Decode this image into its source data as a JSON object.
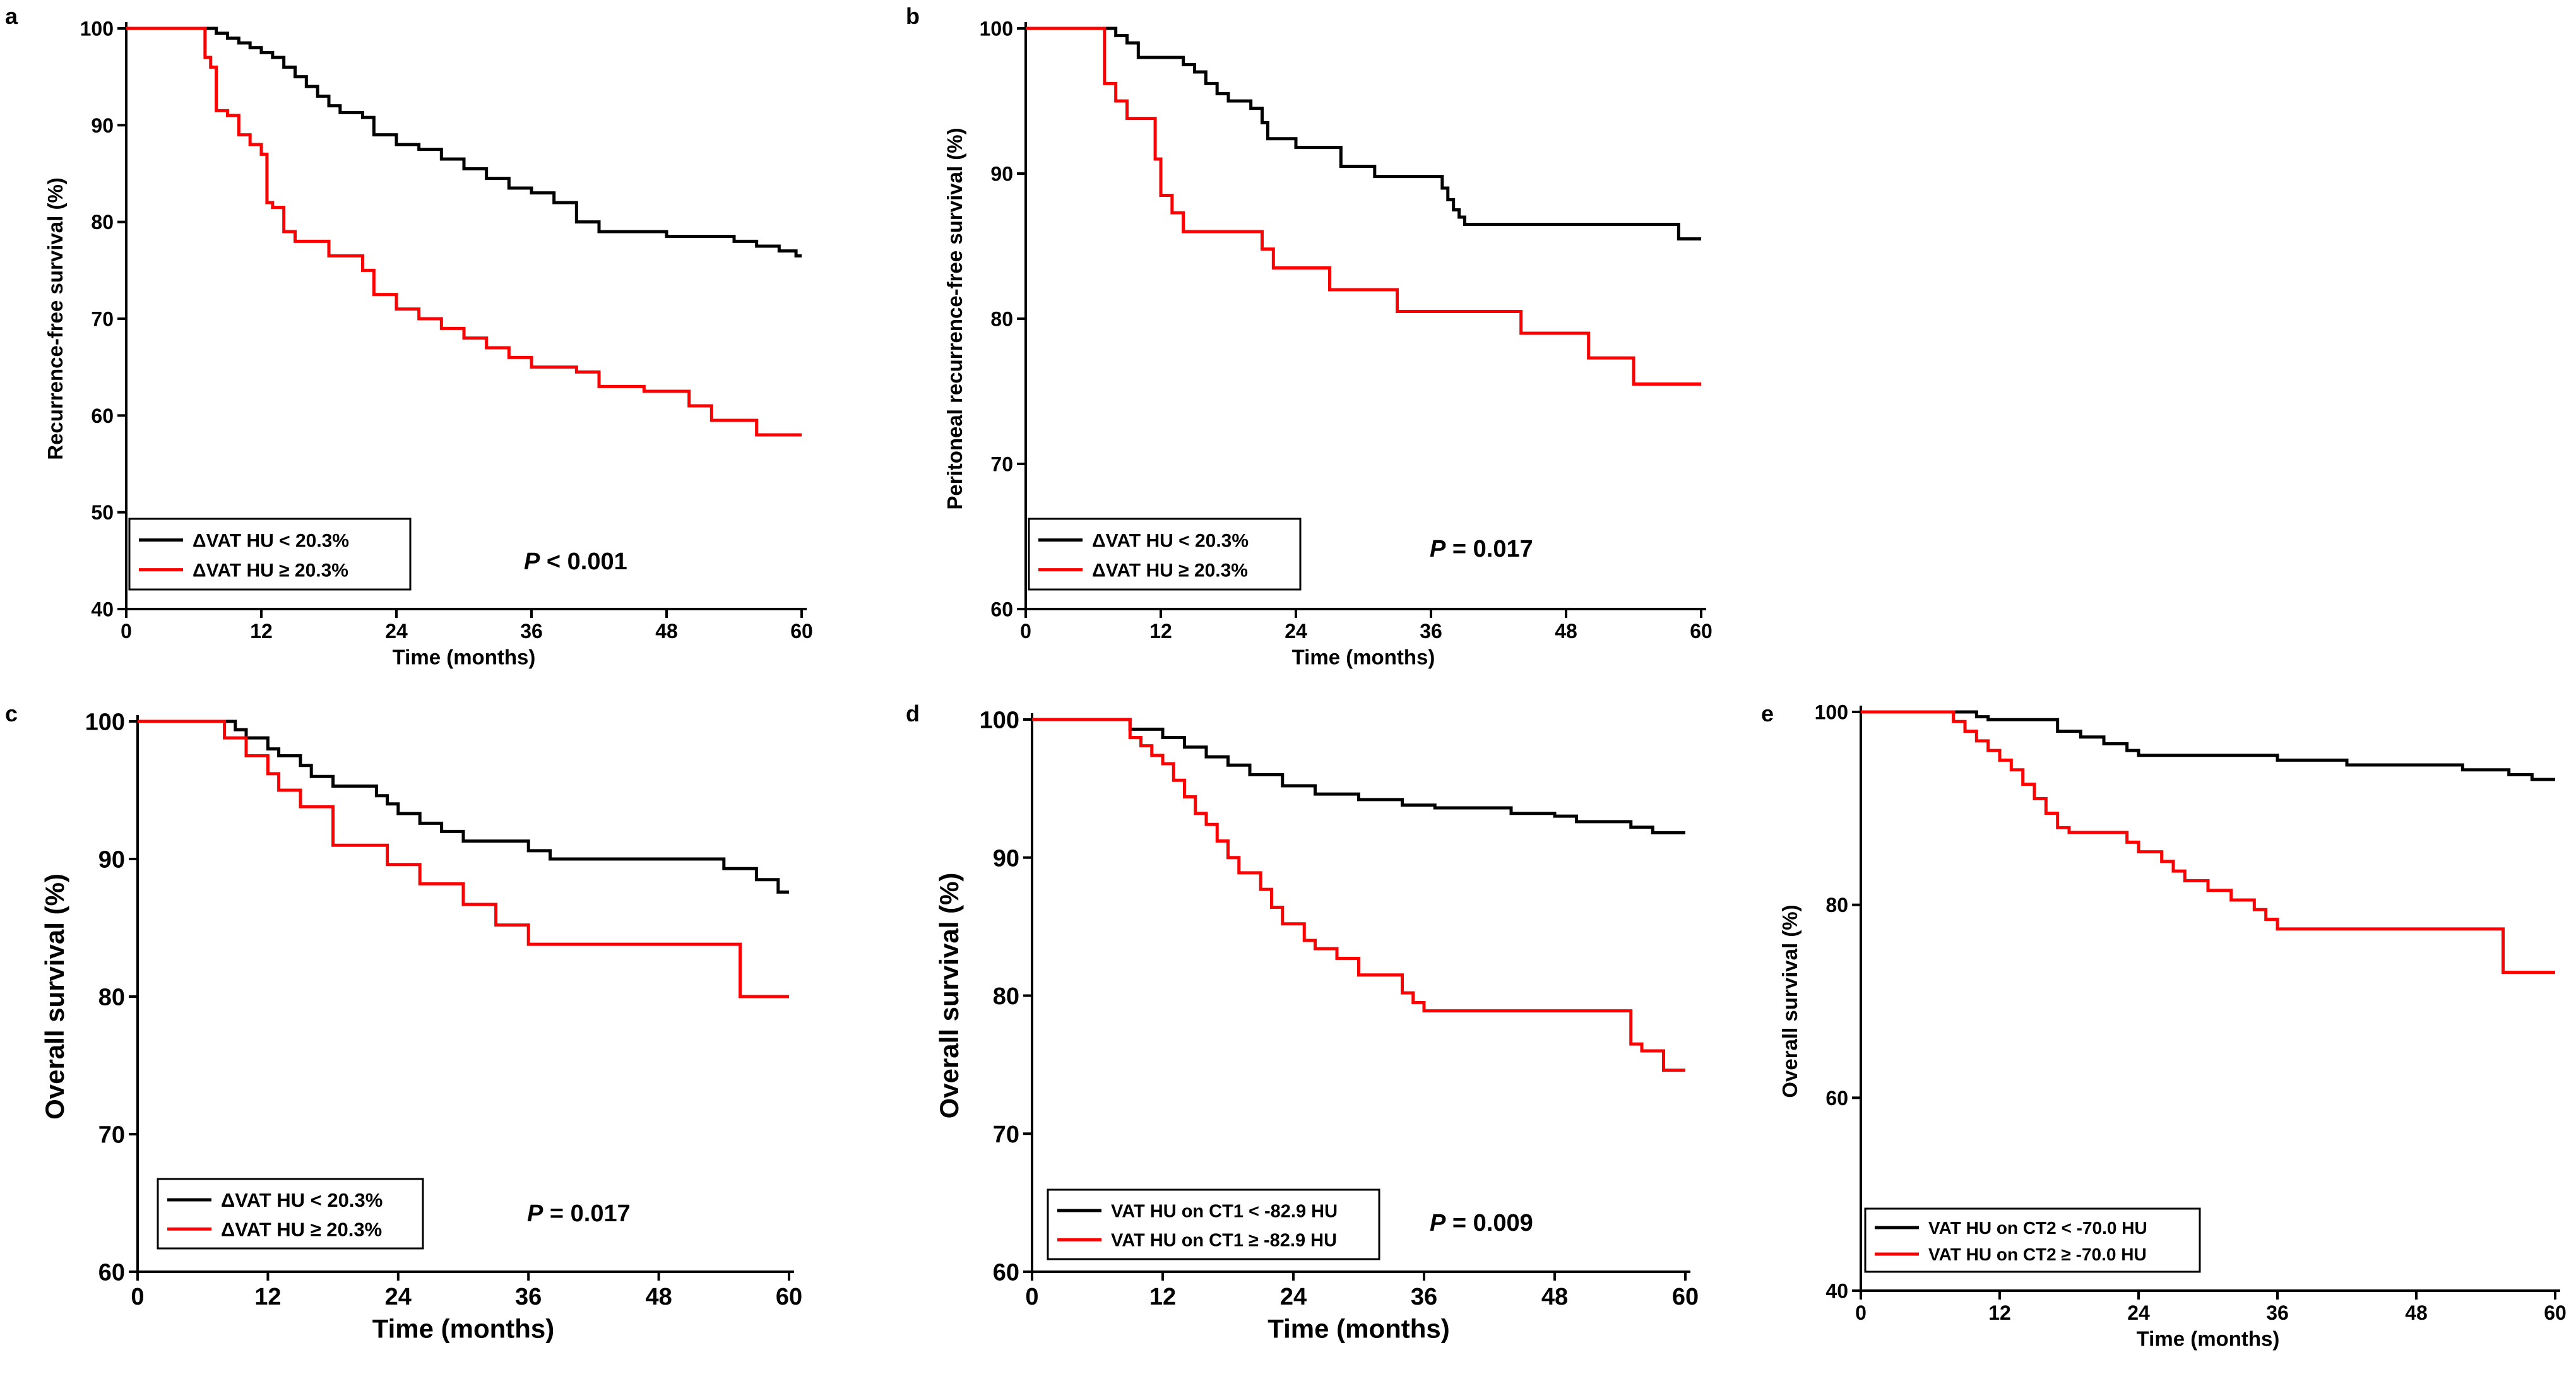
{
  "chart_data": [
    {
      "panel": "a",
      "type": "line",
      "step": true,
      "xlabel": "Time (months)",
      "ylabel": "Recurrence-free survival (%)",
      "xlim": [
        0,
        60
      ],
      "ylim": [
        40,
        100
      ],
      "xticks": [
        0,
        12,
        24,
        36,
        48,
        60
      ],
      "yticks": [
        40,
        50,
        60,
        70,
        80,
        90,
        100
      ],
      "legend_position": "bottom-left",
      "annotation": "P < 0.001",
      "series": [
        {
          "name": "ΔVAT HU < 20.3%",
          "color": "#000000",
          "x": [
            0,
            7,
            8,
            9,
            10,
            11,
            12,
            13,
            14,
            15,
            16,
            17,
            18,
            19,
            21,
            22,
            24,
            26,
            28,
            30,
            32,
            34,
            36,
            38,
            40,
            42,
            48,
            54,
            56,
            58,
            59.5,
            60
          ],
          "y": [
            100,
            100,
            99.5,
            99,
            98.5,
            98,
            97.5,
            97,
            96,
            95,
            94,
            93,
            92,
            91.3,
            90.8,
            89,
            88,
            87.5,
            86.5,
            85.5,
            84.5,
            83.5,
            83,
            82,
            80,
            79,
            78.5,
            78,
            77.5,
            77,
            76.5,
            76.5
          ]
        },
        {
          "name": "ΔVAT HU ≥ 20.3%",
          "color": "#ff0000",
          "x": [
            0,
            6,
            7,
            7.5,
            8,
            9,
            10,
            11,
            12,
            12.5,
            13,
            14,
            15,
            18,
            21,
            22,
            24,
            26,
            28,
            30,
            32,
            34,
            36,
            40,
            42,
            46,
            50,
            52,
            56,
            60
          ],
          "y": [
            100,
            100,
            97,
            96,
            91.5,
            91,
            89,
            88,
            87,
            82,
            81.5,
            79,
            78,
            76.5,
            75,
            72.5,
            71,
            70,
            69,
            68,
            67,
            66,
            65,
            64.5,
            63,
            62.5,
            61,
            59.5,
            58,
            58
          ]
        }
      ]
    },
    {
      "panel": "b",
      "type": "line",
      "step": true,
      "xlabel": "Time (months)",
      "ylabel": "Peritoneal recurrence-free survival (%)",
      "xlim": [
        0,
        60
      ],
      "ylim": [
        60,
        100
      ],
      "xticks": [
        0,
        12,
        24,
        36,
        48,
        60
      ],
      "yticks": [
        60,
        70,
        80,
        90,
        100
      ],
      "legend_position": "bottom-left",
      "annotation": "P = 0.017",
      "series": [
        {
          "name": "ΔVAT HU < 20.3%",
          "color": "#000000",
          "x": [
            0,
            7,
            8,
            9,
            10,
            14,
            15,
            16,
            17,
            18,
            20,
            21,
            21.5,
            24,
            28,
            31,
            37,
            37.5,
            38,
            38.5,
            39,
            40,
            58,
            60
          ],
          "y": [
            100,
            100,
            99.5,
            99,
            98,
            97.5,
            97,
            96.2,
            95.5,
            95,
            94.5,
            93.5,
            92.4,
            91.8,
            90.5,
            89.8,
            89,
            88.2,
            87.5,
            87,
            86.5,
            86.5,
            85.5,
            85.5
          ]
        },
        {
          "name": "ΔVAT HU ≥ 20.3%",
          "color": "#ff0000",
          "x": [
            0,
            6,
            7,
            8,
            9,
            11.5,
            12,
            13,
            14,
            21,
            22,
            27,
            33,
            44,
            50,
            54,
            60
          ],
          "y": [
            100,
            100,
            96.2,
            95,
            93.8,
            91,
            88.5,
            87.3,
            86,
            84.8,
            83.5,
            82,
            80.5,
            79,
            77.3,
            75.5,
            75.5
          ]
        }
      ]
    },
    {
      "panel": "c",
      "type": "line",
      "step": true,
      "xlabel": "Time (months)",
      "ylabel": "Overall survival (%)",
      "xlim": [
        0,
        60
      ],
      "ylim": [
        60,
        100
      ],
      "xticks": [
        0,
        12,
        24,
        36,
        48,
        60
      ],
      "yticks": [
        60,
        70,
        80,
        90,
        100
      ],
      "legend_position": "bottom-left",
      "annotation": "P = 0.017",
      "series": [
        {
          "name": "ΔVAT HU < 20.3%",
          "color": "#000000",
          "x": [
            0,
            8,
            9,
            10,
            12,
            13,
            15,
            16,
            18,
            22,
            23,
            24,
            26,
            28,
            30,
            32,
            36,
            38,
            50,
            54,
            57,
            59,
            60
          ],
          "y": [
            100,
            100,
            99.4,
            98.8,
            98,
            97.5,
            96.8,
            96,
            95.3,
            94.6,
            94,
            93.3,
            92.6,
            92,
            91.3,
            91.3,
            90.6,
            90,
            90,
            89.3,
            88.5,
            87.6,
            87.6
          ]
        },
        {
          "name": "ΔVAT HU ≥ 20.3%",
          "color": "#ff0000",
          "x": [
            0,
            7,
            8,
            10,
            12,
            13,
            15,
            18,
            23,
            26,
            30,
            33,
            36,
            44,
            55,
            55.5,
            60
          ],
          "y": [
            100,
            100,
            98.8,
            97.5,
            96.2,
            95,
            93.8,
            91,
            89.6,
            88.2,
            86.7,
            85.2,
            83.8,
            83.8,
            83.8,
            80,
            80
          ]
        }
      ]
    },
    {
      "panel": "d",
      "type": "line",
      "step": true,
      "xlabel": "Time (months)",
      "ylabel": "Overall survival (%)",
      "xlim": [
        0,
        60
      ],
      "ylim": [
        60,
        100
      ],
      "xticks": [
        0,
        12,
        24,
        36,
        48,
        60
      ],
      "yticks": [
        60,
        70,
        80,
        90,
        100
      ],
      "legend_position": "bottom-left",
      "annotation": "P = 0.009",
      "series": [
        {
          "name": "VAT HU on CT1 < -82.9 HU",
          "color": "#000000",
          "x": [
            0,
            8,
            9,
            12,
            14,
            16,
            18,
            20,
            23,
            26,
            30,
            34,
            37,
            40,
            44,
            48,
            50,
            55,
            57,
            60
          ],
          "y": [
            100,
            100,
            99.3,
            98.7,
            98,
            97.3,
            96.7,
            96,
            95.2,
            94.6,
            94.2,
            93.8,
            93.6,
            93.6,
            93.2,
            93,
            92.6,
            92.2,
            91.8,
            91.8
          ]
        },
        {
          "name": "VAT HU on CT1 ≥ -82.9 HU",
          "color": "#ff0000",
          "x": [
            0,
            8,
            9,
            10,
            11,
            12,
            13,
            14,
            15,
            16,
            17,
            18,
            19,
            21,
            22,
            23,
            25,
            26,
            28,
            30,
            34,
            35,
            36,
            44,
            52,
            54,
            55,
            56,
            58,
            60
          ],
          "y": [
            100,
            100,
            98.7,
            98.1,
            97.4,
            96.8,
            95.6,
            94.4,
            93.2,
            92.4,
            91.2,
            90,
            88.9,
            87.7,
            86.4,
            85.2,
            84,
            83.4,
            82.7,
            81.5,
            80.2,
            79.5,
            78.9,
            78.9,
            78.9,
            78.9,
            76.5,
            76,
            74.6,
            74.6
          ]
        }
      ]
    },
    {
      "panel": "e",
      "type": "line",
      "step": true,
      "xlabel": "Time (months)",
      "ylabel": "Overall survival (%)",
      "xlim": [
        0,
        60
      ],
      "ylim": [
        40,
        100
      ],
      "xticks": [
        0,
        12,
        24,
        36,
        48,
        60
      ],
      "yticks": [
        40,
        60,
        80,
        100
      ],
      "legend_position": "bottom-left",
      "annotation": "",
      "series": [
        {
          "name": "VAT HU on CT2 < -70.0 HU",
          "color": "#000000",
          "x": [
            0,
            9,
            10,
            11,
            13,
            17,
            19,
            21,
            23,
            24,
            28,
            32,
            36,
            38,
            42,
            48,
            52,
            56,
            58,
            60
          ],
          "y": [
            100,
            100,
            99.5,
            99.2,
            99.2,
            98,
            97.4,
            96.7,
            96,
            95.5,
            95.5,
            95.5,
            95,
            95,
            94.5,
            94.5,
            94,
            93.5,
            93,
            93
          ]
        },
        {
          "name": "VAT HU on CT2 ≥ -70.0 HU",
          "color": "#ff0000",
          "x": [
            0,
            7,
            8,
            9,
            10,
            11,
            12,
            13,
            14,
            15,
            16,
            17,
            18,
            23,
            24,
            26,
            27,
            28,
            30,
            32,
            34,
            35,
            36,
            44,
            55,
            55.5,
            60
          ],
          "y": [
            100,
            100,
            99,
            98,
            97,
            96,
            95,
            94,
            92.5,
            91,
            89.5,
            88,
            87.5,
            86.5,
            85.5,
            84.5,
            83.5,
            82.5,
            81.5,
            80.5,
            79.5,
            78.5,
            77.5,
            77.5,
            77.5,
            73,
            73
          ]
        }
      ]
    }
  ]
}
